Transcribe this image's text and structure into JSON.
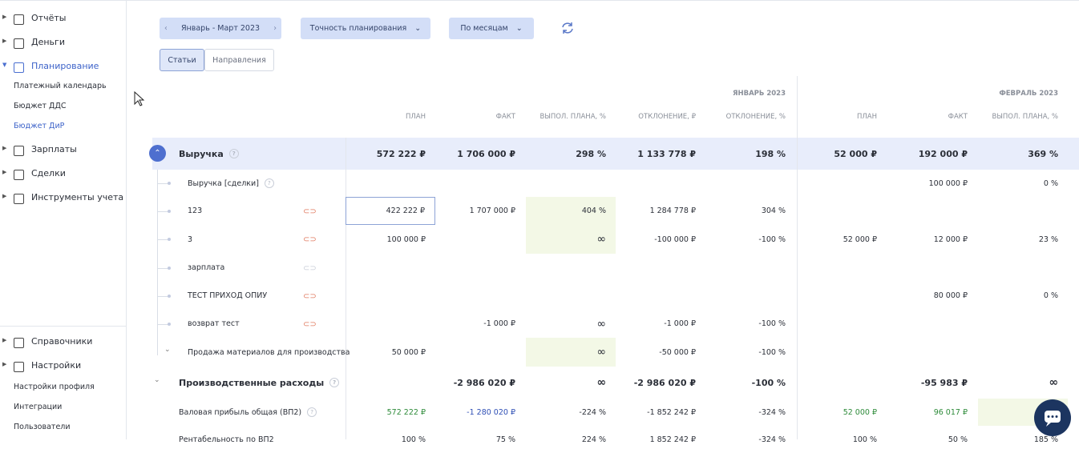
{
  "sidebar": {
    "top": [
      {
        "label": "Отчёты"
      },
      {
        "label": "Деньги"
      },
      {
        "label": "Планирование",
        "children": [
          "Платежный календарь",
          "Бюджет ДДС",
          "Бюджет ДиР"
        ]
      },
      {
        "label": "Зарплаты"
      },
      {
        "label": "Сделки"
      },
      {
        "label": "Инструменты учета"
      }
    ],
    "bottom": [
      {
        "label": "Справочники"
      },
      {
        "label": "Настройки",
        "children": [
          "Настройки профиля",
          "Интеграции",
          "Пользователи"
        ]
      }
    ]
  },
  "toolbar": {
    "period": "Январь - Март 2023",
    "accuracy": "Точность планирования",
    "grouping": "По месяцам",
    "tabs": [
      "Статьи",
      "Направления"
    ]
  },
  "table": {
    "months": [
      {
        "label": "ЯНВАРЬ 2023",
        "columns": [
          "ПЛАН",
          "ФАКТ",
          "ВЫПОЛ. ПЛАНА, %",
          "ОТКЛОНЕНИЕ, ₽",
          "ОТКЛОНЕНИЕ, %"
        ]
      },
      {
        "label": "ФЕВРАЛЬ 2023",
        "columns": [
          "ПЛАН",
          "ФАКТ",
          "ВЫПОЛ. ПЛАНА, %"
        ]
      }
    ],
    "rows": [
      {
        "name": "Выручка",
        "cells": [
          "572 222 ₽",
          "1 706 000 ₽",
          "298 %",
          "1 133 778 ₽",
          "198 %",
          "52 000 ₽",
          "192 000 ₽",
          "369 %"
        ]
      },
      {
        "name": "Выручка [сделки]",
        "cells": [
          null,
          null,
          null,
          null,
          null,
          null,
          "100 000 ₽",
          "0 %"
        ]
      },
      {
        "name": "123",
        "cells": [
          "422 222 ₽",
          "1 707 000 ₽",
          "404 %",
          "1 284 778 ₽",
          "304 %",
          null,
          null,
          null
        ]
      },
      {
        "name": "3",
        "cells": [
          "100 000 ₽",
          null,
          "∞",
          "-100 000 ₽",
          "-100 %",
          "52 000 ₽",
          "12 000 ₽",
          "23 %"
        ]
      },
      {
        "name": "зарплата",
        "cells": [
          null,
          null,
          null,
          null,
          null,
          null,
          null,
          null
        ]
      },
      {
        "name": "ТЕСТ ПРИХОД ОПИУ",
        "cells": [
          null,
          null,
          null,
          null,
          null,
          null,
          "80 000 ₽",
          "0 %"
        ]
      },
      {
        "name": "возврат тест",
        "cells": [
          null,
          "-1 000 ₽",
          "∞",
          "-1 000 ₽",
          "-100 %",
          null,
          null,
          null
        ]
      },
      {
        "name": "Продажа материалов для производства",
        "cells": [
          "50 000 ₽",
          null,
          "∞",
          "-50 000 ₽",
          "-100 %",
          null,
          null,
          null
        ]
      },
      {
        "name": "Производственные расходы",
        "cells": [
          null,
          "-2 986 020 ₽",
          "∞",
          "-2 986 020 ₽",
          "-100 %",
          null,
          "-95 983 ₽",
          "∞"
        ]
      },
      {
        "name": "Валовая прибыль общая (ВП2)",
        "cells": [
          "572 222 ₽",
          "-1 280 020 ₽",
          "-224 %",
          "-1 852 242 ₽",
          "-324 %",
          "52 000 ₽",
          "96 017 ₽",
          null
        ]
      },
      {
        "name": "Рентабельность по ВП2",
        "cells": [
          "100 %",
          "75 %",
          "224 %",
          "1 852 242 ₽",
          "-324 %",
          "100 %",
          "50 %",
          "185 %"
        ]
      }
    ]
  }
}
